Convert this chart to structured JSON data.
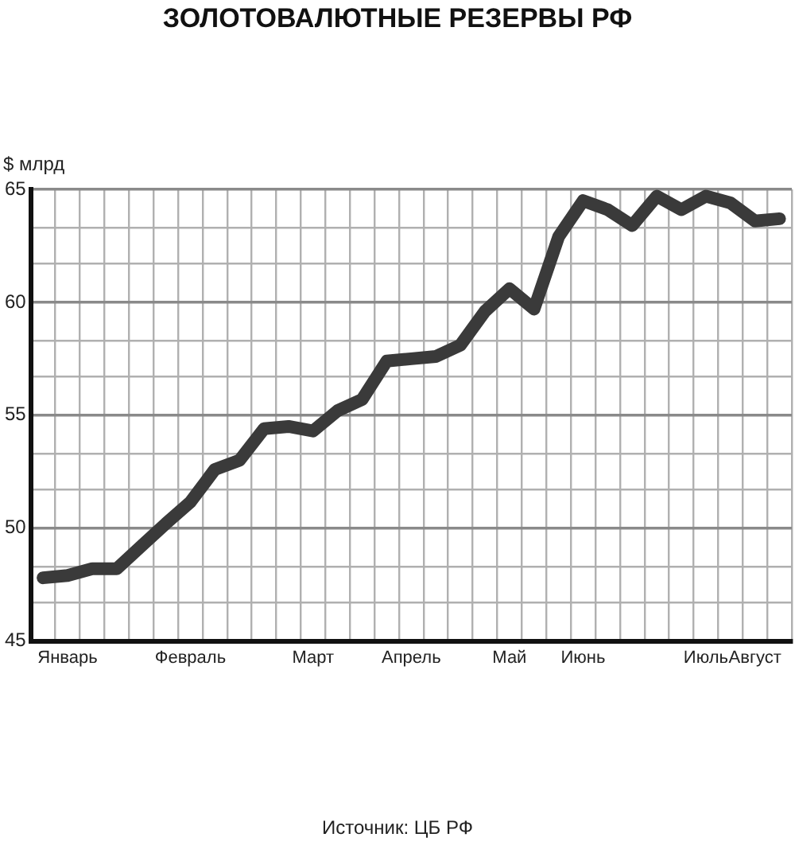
{
  "chart_data": {
    "type": "line",
    "title": "ЗОЛОТОВАЛЮТНЫЕ РЕЗЕРВЫ РФ",
    "ylabel": "$ млрд",
    "annotations": [
      "Источник: ЦБ РФ"
    ],
    "categories": [
      null,
      "Январь",
      null,
      null,
      null,
      null,
      "Февраль",
      null,
      null,
      null,
      null,
      "Март",
      null,
      null,
      null,
      "Апрель",
      null,
      null,
      null,
      "Май",
      null,
      null,
      "Июнь",
      null,
      null,
      null,
      null,
      "Июль",
      null,
      "Август",
      null
    ],
    "series": [
      {
        "color": "#3a3a3a",
        "values": [
          47.8,
          47.9,
          48.2,
          48.2,
          49.2,
          50.2,
          51.15,
          52.6,
          53.0,
          54.4,
          54.5,
          54.3,
          55.2,
          55.7,
          57.4,
          57.5,
          57.6,
          58.1,
          59.6,
          60.6,
          59.7,
          62.9,
          64.5,
          64.1,
          63.4,
          64.7,
          64.1,
          64.7,
          64.4,
          63.6,
          63.7
        ]
      }
    ],
    "ylim": [
      45,
      65
    ],
    "yticks": [
      45,
      {
        "value": 46.7,
        "label": null
      },
      {
        "value": 48.3,
        "label": null
      },
      50,
      {
        "value": 51.7,
        "label": null
      },
      {
        "value": 53.3,
        "label": null
      },
      55,
      {
        "value": 56.7,
        "label": null
      },
      {
        "value": 58.3,
        "label": null
      },
      60,
      {
        "value": 61.7,
        "label": null
      },
      {
        "value": 63.3,
        "label": null
      },
      65
    ],
    "grid": true,
    "marker": "none",
    "line_style": "solid",
    "legend": false
  }
}
